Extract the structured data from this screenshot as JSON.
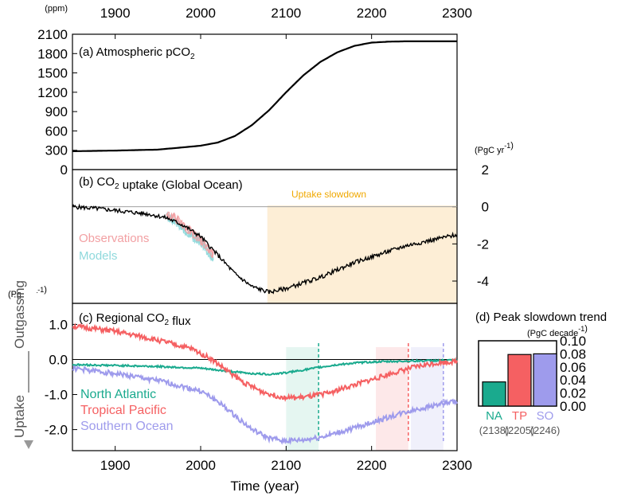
{
  "figure": {
    "top_axis_ticks": [
      "1900",
      "2000",
      "2100",
      "2200",
      "2300"
    ],
    "bottom_axis_ticks": [
      "1900",
      "2000",
      "2100",
      "2200",
      "2300"
    ],
    "xlabel": "Time (year)",
    "side_labels": {
      "up": "Outgassing",
      "down": "Uptake"
    }
  },
  "colors": {
    "black": "#000000",
    "north_atlantic": "#1aaa8e",
    "tropical_pacific": "#f56062",
    "southern_ocean": "#9e9bec",
    "observations": "#f2a0a3",
    "models": "#8fd9dc",
    "slowdown_shade": "#fdeed6",
    "zero_line": "#a0a0a0"
  },
  "chart_data": [
    {
      "id": "a",
      "type": "line",
      "title": "(a) Atmospheric pCO",
      "title_sub": "2",
      "unit": "(ppm)",
      "xlim": [
        1850,
        2300
      ],
      "ylim": [
        0,
        2100
      ],
      "yticks": [
        "0",
        "300",
        "600",
        "900",
        "1200",
        "1500",
        "1800",
        "2100"
      ],
      "series": [
        {
          "x": [
            1850,
            1900,
            1950,
            2000,
            2020,
            2040,
            2060,
            2080,
            2100,
            2120,
            2140,
            2160,
            2180,
            2200,
            2220,
            2240,
            2250,
            2270,
            2300
          ],
          "y": [
            285,
            295,
            310,
            370,
            420,
            520,
            690,
            920,
            1200,
            1460,
            1670,
            1820,
            1920,
            1970,
            1985,
            1990,
            1990,
            1990,
            1990
          ]
        }
      ]
    },
    {
      "id": "b",
      "type": "line",
      "title": "(b) CO",
      "title_sub": "2",
      "title_rest": " uptake (Global Ocean)",
      "unit_top": "(PgC yr",
      "unit_left": "(PgC yr",
      "unit_sup": "-1",
      "xlim": [
        1850,
        2300
      ],
      "ylim": [
        -5.2,
        2
      ],
      "yticks": [
        "2",
        "0",
        "-2",
        "-4"
      ],
      "shade": {
        "x": [
          2078,
          2300
        ],
        "label": "Uptake slowdown"
      },
      "legend": [
        "Observations",
        "Models"
      ],
      "series": [
        {
          "name": "Observations",
          "x": [
            1960,
            1970,
            1980,
            1990,
            2000,
            2010,
            2015
          ],
          "y": [
            -0.4,
            -0.6,
            -1.0,
            -1.4,
            -1.8,
            -2.3,
            -2.6
          ]
        },
        {
          "name": "Models",
          "x": [
            1960,
            1970,
            1980,
            1990,
            2000,
            2010,
            2015
          ],
          "y": [
            -0.5,
            -0.8,
            -1.2,
            -1.6,
            -1.9,
            -2.5,
            -2.8
          ]
        },
        {
          "x": [
            1850,
            1880,
            1900,
            1920,
            1940,
            1960,
            1980,
            2000,
            2020,
            2040,
            2060,
            2080,
            2100,
            2120,
            2140,
            2160,
            2180,
            2200,
            2220,
            2240,
            2260,
            2280,
            2300
          ],
          "y": [
            0.0,
            -0.1,
            -0.2,
            -0.3,
            -0.4,
            -0.6,
            -1.0,
            -1.6,
            -2.6,
            -3.6,
            -4.3,
            -4.6,
            -4.4,
            -4.1,
            -3.8,
            -3.4,
            -3.0,
            -2.7,
            -2.4,
            -2.1,
            -1.9,
            -1.7,
            -1.5
          ]
        }
      ]
    },
    {
      "id": "c",
      "type": "line",
      "title": "(c) Regional CO",
      "title_sub": "2",
      "title_rest": " flux",
      "xlim": [
        1850,
        2300
      ],
      "ylim": [
        -2.6,
        1.6
      ],
      "yticks": [
        "1.0",
        "0.0",
        "-1.0",
        "-2.0"
      ],
      "legend": [
        "North Atlantic",
        "Tropical Pacific",
        "Southern Ocean"
      ],
      "peak_markers": [
        {
          "series": "North Atlantic",
          "x": [
            2100,
            2138
          ]
        },
        {
          "series": "Tropical Pacific",
          "x": [
            2205,
            2243
          ]
        },
        {
          "series": "Southern Ocean",
          "x": [
            2246,
            2284
          ]
        }
      ],
      "series": [
        {
          "name": "North Atlantic",
          "x": [
            1850,
            1900,
            1950,
            2000,
            2030,
            2060,
            2080,
            2100,
            2120,
            2140,
            2160,
            2180,
            2200,
            2250,
            2300
          ],
          "y": [
            -0.15,
            -0.17,
            -0.2,
            -0.25,
            -0.33,
            -0.4,
            -0.42,
            -0.38,
            -0.3,
            -0.22,
            -0.15,
            -0.1,
            -0.07,
            -0.04,
            -0.02
          ]
        },
        {
          "name": "Tropical Pacific",
          "x": [
            1850,
            1900,
            1950,
            1990,
            2010,
            2030,
            2050,
            2070,
            2090,
            2110,
            2130,
            2150,
            2170,
            2190,
            2210,
            2230,
            2250,
            2270,
            2300
          ],
          "y": [
            0.95,
            0.8,
            0.55,
            0.3,
            0.05,
            -0.3,
            -0.65,
            -0.9,
            -1.05,
            -1.1,
            -1.05,
            -0.95,
            -0.8,
            -0.65,
            -0.5,
            -0.35,
            -0.22,
            -0.12,
            -0.05
          ]
        },
        {
          "name": "Southern Ocean",
          "x": [
            1850,
            1900,
            1950,
            2000,
            2020,
            2040,
            2060,
            2080,
            2100,
            2120,
            2140,
            2160,
            2180,
            2200,
            2220,
            2240,
            2260,
            2280,
            2300
          ],
          "y": [
            -0.25,
            -0.4,
            -0.6,
            -0.9,
            -1.2,
            -1.6,
            -2.0,
            -2.25,
            -2.32,
            -2.3,
            -2.22,
            -2.1,
            -1.95,
            -1.8,
            -1.65,
            -1.5,
            -1.38,
            -1.27,
            -1.2
          ]
        }
      ]
    },
    {
      "id": "d",
      "type": "bar",
      "title": "(d) Peak slowdown trend",
      "unit": "(PgC decade",
      "unit_sup": "-1",
      "categories": [
        "NA",
        "TP",
        "SO"
      ],
      "years": [
        "(2138)",
        "(2205)",
        "(2246)"
      ],
      "values": [
        0.037,
        0.079,
        0.08
      ],
      "ylim": [
        0,
        0.1
      ],
      "yticks": [
        "0.00",
        "0.02",
        "0.04",
        "0.06",
        "0.08",
        "0.10"
      ]
    }
  ]
}
